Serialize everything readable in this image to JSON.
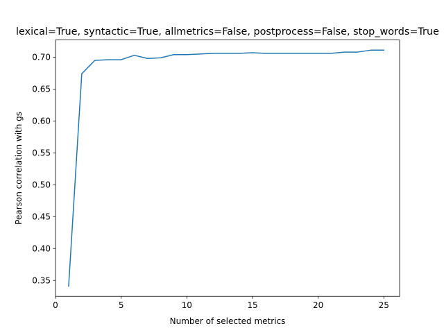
{
  "chart_data": {
    "type": "line",
    "title": "lexical=True, syntactic=True, allmetrics=False, postprocess=False, stop_words=True",
    "xlabel": "Number of selected metrics",
    "ylabel": "Pearson correlation with gs",
    "xlim": [
      0,
      26.2
    ],
    "ylim": [
      0.325,
      0.727
    ],
    "xticks": [
      0,
      5,
      10,
      15,
      20,
      25
    ],
    "yticks": [
      0.35,
      0.4,
      0.45,
      0.5,
      0.55,
      0.6,
      0.65,
      0.7
    ],
    "grid": false,
    "series": [
      {
        "color": "#1f77b4",
        "x": [
          1,
          2,
          3,
          4,
          5,
          6,
          7,
          8,
          9,
          10,
          11,
          12,
          13,
          14,
          15,
          16,
          17,
          18,
          19,
          20,
          21,
          22,
          23,
          24,
          25
        ],
        "y": [
          0.341,
          0.674,
          0.695,
          0.696,
          0.696,
          0.703,
          0.698,
          0.699,
          0.704,
          0.704,
          0.705,
          0.706,
          0.706,
          0.706,
          0.707,
          0.706,
          0.706,
          0.706,
          0.706,
          0.706,
          0.706,
          0.708,
          0.708,
          0.711,
          0.711
        ]
      }
    ]
  }
}
